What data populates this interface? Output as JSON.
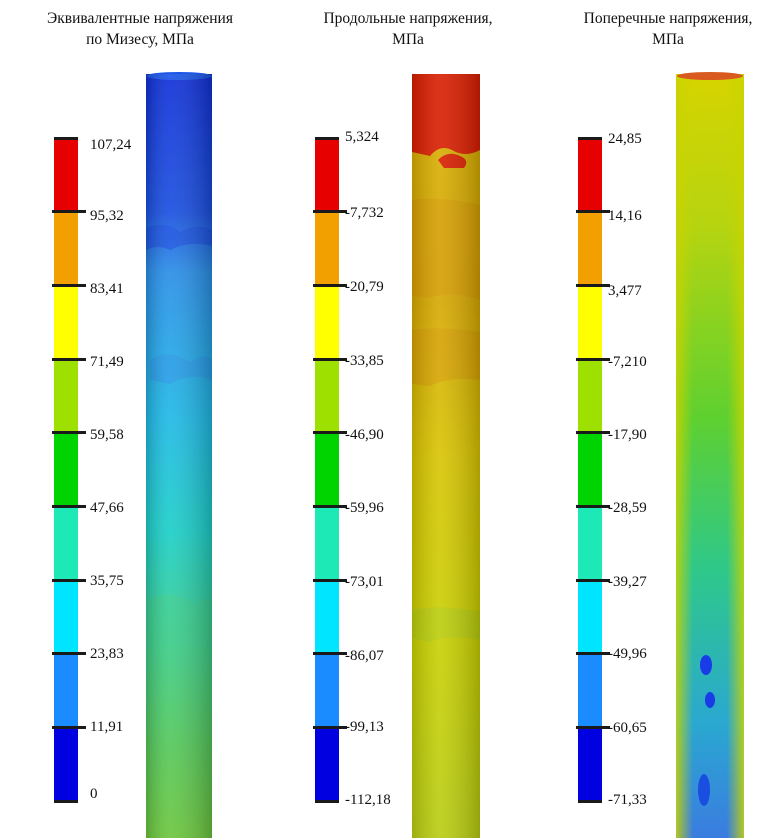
{
  "colormap": [
    "#0000e0",
    "#1a8cff",
    "#00e5ff",
    "#1de9b6",
    "#00d400",
    "#9ee000",
    "#ffff00",
    "#f2a000",
    "#e60000"
  ],
  "panels": [
    {
      "title_line1": "Эквивалентные напряжения",
      "title_line2": "по Мизесу, МПа",
      "labels": [
        "107,24",
        "95,32",
        "83,41",
        "71,49",
        "59,58",
        "47,66",
        "35,75",
        "23,83",
        "11,91",
        "0"
      ]
    },
    {
      "title_line1": "Продольные напряжения,",
      "title_line2": "МПа",
      "labels": [
        "5,324",
        "-7,732",
        "-20,79",
        "-33,85",
        "-46,90",
        "-59,96",
        "-73,01",
        "-86,07",
        "-99,13",
        "-112,18"
      ]
    },
    {
      "title_line1": "Поперечные напряжения,",
      "title_line2": "МПа",
      "labels": [
        "24,85",
        "14,16",
        "3,477",
        "-7,210",
        "-17,90",
        "-28,59",
        "-39,27",
        "-49,96",
        "-60,65",
        "-71,33"
      ]
    }
  ]
}
